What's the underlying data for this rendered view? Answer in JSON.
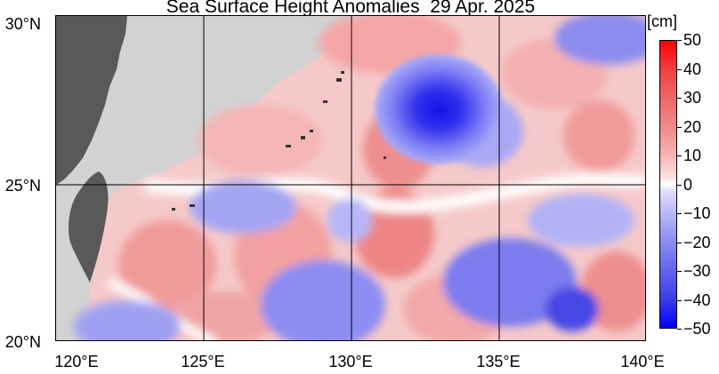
{
  "title": "Sea Surface Height Anomalies  29 Apr. 2025",
  "unit_label": "[cm]",
  "lat_labels": [
    "30°N",
    "25°N",
    "20°N"
  ],
  "lon_labels": [
    "120°E",
    "125°E",
    "130°E",
    "135°E",
    "140°E"
  ],
  "colorbar": {
    "min": -50,
    "max": 50,
    "tick_labels": [
      "50",
      "40",
      "30",
      "20",
      "10",
      "0",
      "−10",
      "−20",
      "−30",
      "−40",
      "−50"
    ],
    "colors": {
      "positive_max": "#ff0000",
      "positive_min": "#fde3e3",
      "zero": "#ffffff",
      "negative_min": "#e2e2fd",
      "negative_max": "#0000ff"
    }
  },
  "map": {
    "lon_range": [
      120,
      140
    ],
    "lat_range": [
      20,
      30
    ],
    "land_color": "#585858",
    "masked_color": "#d4d4d4",
    "grid_color": "#000000"
  }
}
